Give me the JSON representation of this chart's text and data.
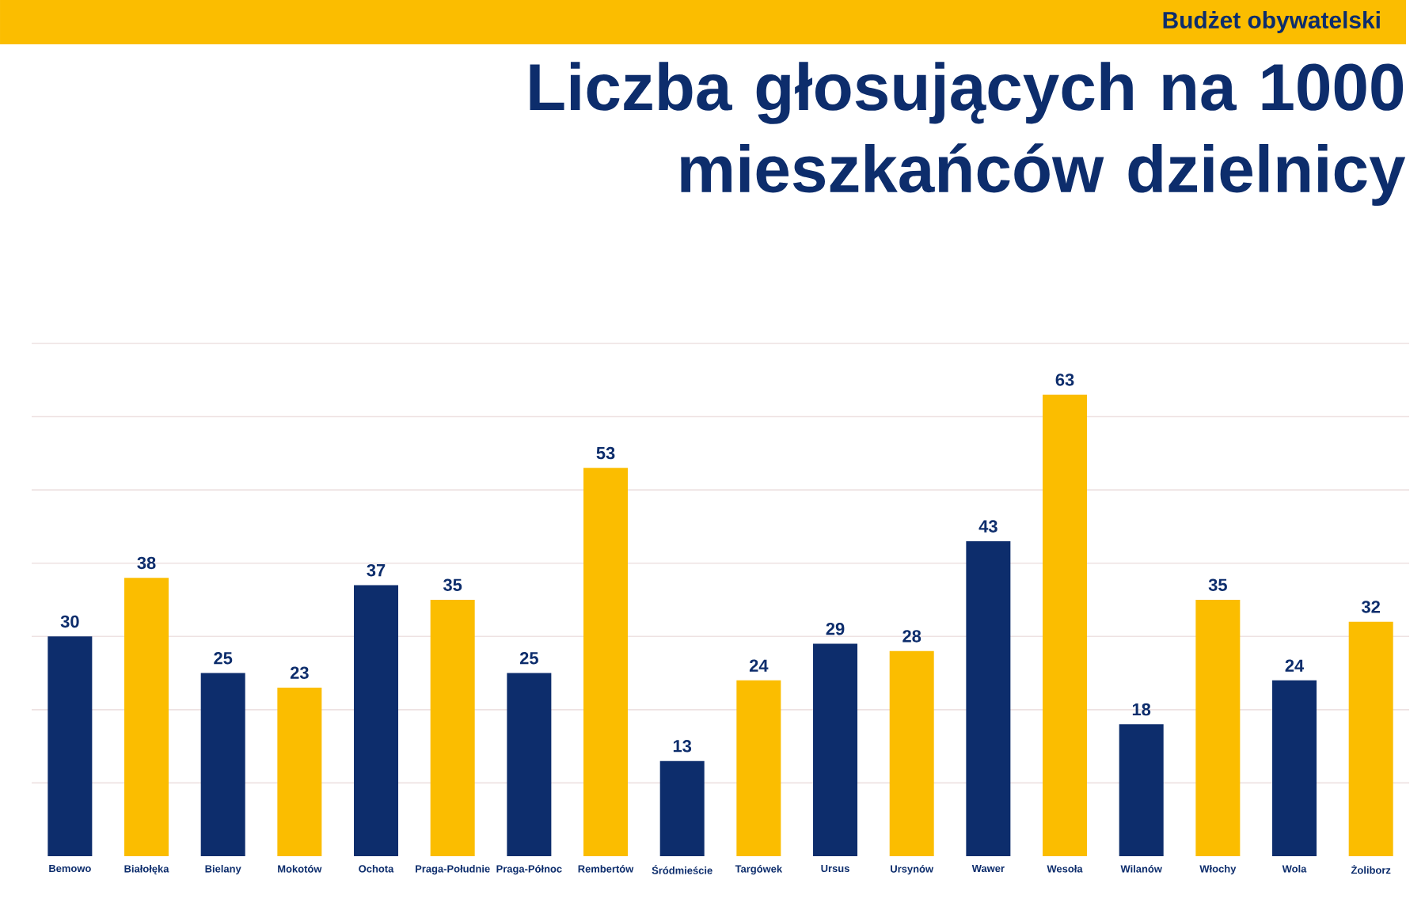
{
  "chart_data": {
    "type": "bar",
    "title": "Liczba głosujących na 1000 mieszkańców dzielnicy",
    "subtitle": "Budżet obywatelski",
    "categories": [
      "Bemowo",
      "Białołęka",
      "Bielany",
      "Mokotów",
      "Ochota",
      "Praga-Południe",
      "Praga-Północ",
      "Rembertów",
      "Śródmieście",
      "Targówek",
      "Ursus",
      "Ursynów",
      "Wawer",
      "Wesoła",
      "Wilanów",
      "Włochy",
      "Wola",
      "Żoliborz"
    ],
    "values": [
      30,
      38,
      25,
      23,
      37,
      35,
      25,
      53,
      13,
      24,
      29,
      28,
      43,
      63,
      18,
      35,
      24,
      32
    ],
    "colors": [
      "#0d2d6c",
      "#fbbd00",
      "#0d2d6c",
      "#fbbd00",
      "#0d2d6c",
      "#fbbd00",
      "#0d2d6c",
      "#fbbd00",
      "#0d2d6c",
      "#fbbd00",
      "#0d2d6c",
      "#fbbd00",
      "#0d2d6c",
      "#fbbd00",
      "#0d2d6c",
      "#fbbd00",
      "#0d2d6c",
      "#fbbd00"
    ],
    "ylim": [
      0,
      70
    ],
    "yticks": [
      {
        "value": 10,
        "label": null
      },
      {
        "value": 20,
        "label": null
      },
      {
        "value": 30,
        "label": null
      },
      {
        "value": 40,
        "label": null
      },
      {
        "value": 50,
        "label": null
      },
      {
        "value": 60,
        "label": null
      },
      {
        "value": 70,
        "label": null
      }
    ],
    "grid": "y",
    "tick_labels": "x",
    "data_labels": true
  }
}
